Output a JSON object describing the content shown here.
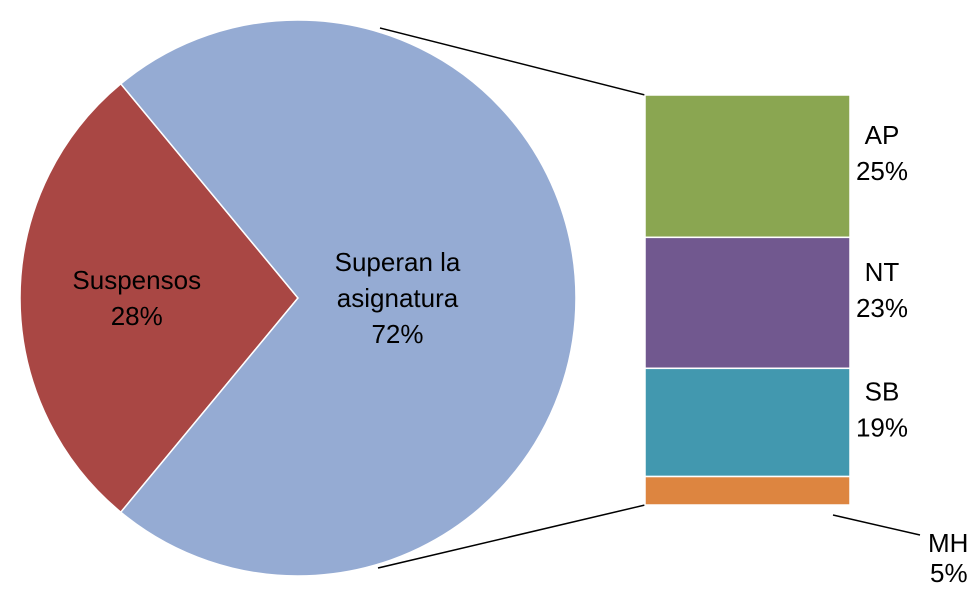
{
  "chart_data": {
    "type": "pie",
    "pie": {
      "categories": [
        "Suspensos",
        "Superan la asignatura"
      ],
      "values": [
        28,
        72
      ],
      "value_labels": [
        "28%",
        "72%"
      ],
      "colors": [
        "#a94744",
        "#95abd3"
      ]
    },
    "bar": {
      "categories": [
        "AP",
        "NT",
        "SB",
        "MH"
      ],
      "values": [
        25,
        23,
        19,
        5
      ],
      "value_labels": [
        "25%",
        "23%",
        "19%",
        "5%"
      ],
      "colors": [
        "#8aa651",
        "#71588f",
        "#4298af",
        "#dd8540"
      ]
    }
  }
}
